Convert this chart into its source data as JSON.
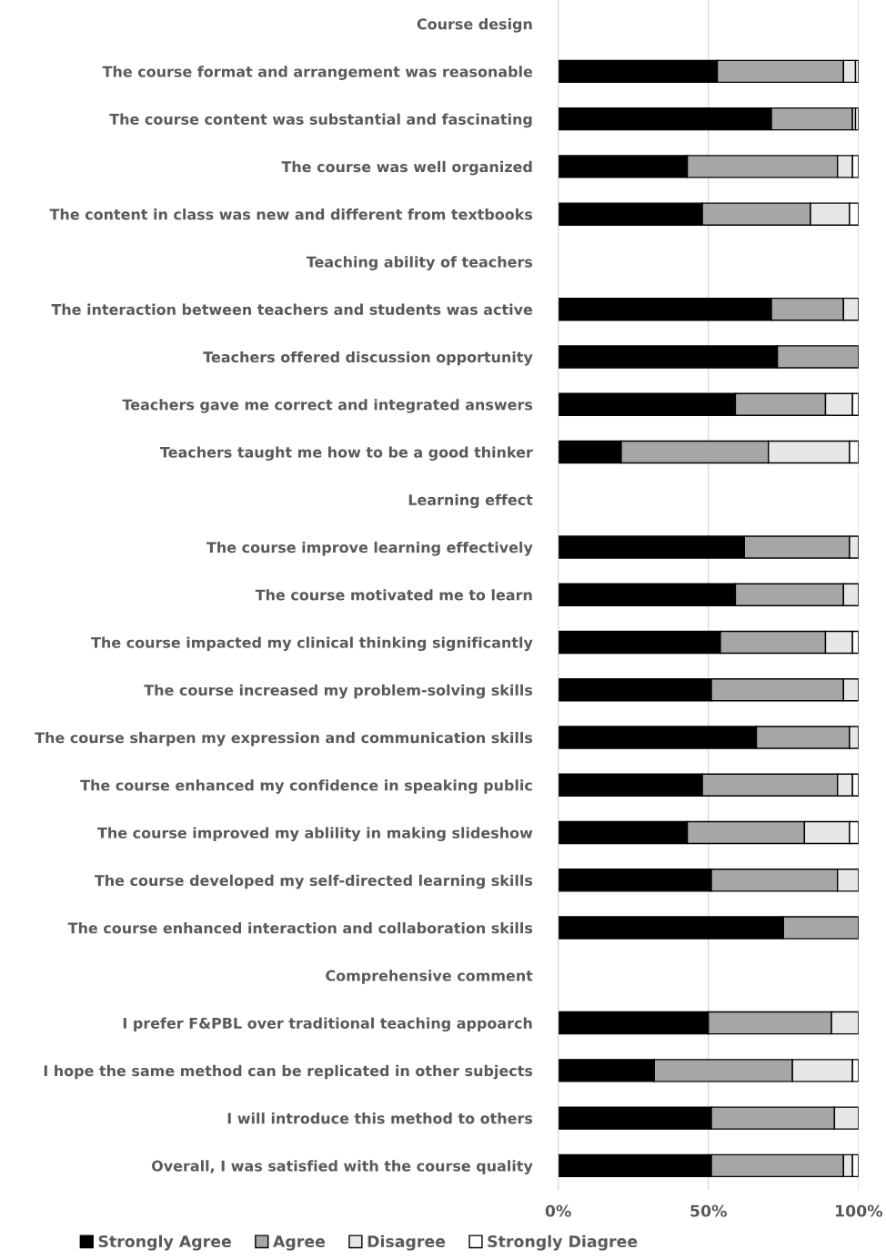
{
  "chart_data": {
    "type": "bar",
    "orientation": "horizontal",
    "stacked": true,
    "categories": [
      "Course design",
      "The course format and arrangement was reasonable",
      "The course content was substantial and fascinating",
      "The course was well organized",
      "The content in class was new and different from textbooks",
      "Teaching ability of teachers",
      "The interaction between teachers and students was active",
      "Teachers offered discussion opportunity",
      "Teachers gave me correct and integrated answers",
      "Teachers taught me how to be a good thinker",
      "Learning effect",
      "The course improve learning effectively",
      "The course motivated me to learn",
      "The course impacted my clinical thinking significantly",
      "The course increased my problem-solving skills",
      "The course sharpen my expression and communication skills",
      "The course enhanced my confidence in speaking public",
      "The course improved my ablility in making slideshow",
      "The course developed my self-directed learning skills",
      "The course enhanced interaction and collaboration skills",
      "Comprehensive comment",
      "I prefer F&PBL over traditional teaching appoarch",
      "I hope the same method can be replicated in other subjects",
      "I will introduce this method to others",
      "Overall, I was satisfied with the course quality"
    ],
    "series": [
      {
        "name": "Strongly Agree",
        "color": "#000000",
        "values": [
          null,
          53,
          71,
          43,
          48,
          null,
          71,
          73,
          59,
          21,
          null,
          62,
          59,
          54,
          51,
          66,
          48,
          43,
          51,
          75,
          null,
          50,
          32,
          51,
          51
        ]
      },
      {
        "name": "Agree",
        "color": "#a6a6a6",
        "values": [
          null,
          42,
          27,
          50,
          36,
          null,
          24,
          27,
          30,
          49,
          null,
          35,
          36,
          35,
          44,
          31,
          45,
          39,
          42,
          25,
          null,
          41,
          46,
          41,
          44
        ]
      },
      {
        "name": "Disagree",
        "color": "#e7e7e7",
        "values": [
          null,
          4,
          1,
          5,
          13,
          null,
          5,
          0,
          9,
          27,
          null,
          3,
          5,
          9,
          5,
          3,
          5,
          15,
          7,
          0,
          null,
          9,
          20,
          8,
          3
        ]
      },
      {
        "name": "Strongly Diagree",
        "color": "#ffffff",
        "values": [
          null,
          1,
          1,
          2,
          3,
          null,
          0,
          0,
          2,
          3,
          null,
          0,
          0,
          2,
          0,
          0,
          2,
          3,
          0,
          0,
          null,
          0,
          2,
          0,
          2
        ]
      }
    ],
    "xlim": [
      0,
      100
    ],
    "xticks": [
      {
        "value": 0,
        "label": "0%"
      },
      {
        "value": 50,
        "label": "50%"
      },
      {
        "value": 100,
        "label": "100%"
      }
    ],
    "grid": "x",
    "legend": "bottom"
  }
}
